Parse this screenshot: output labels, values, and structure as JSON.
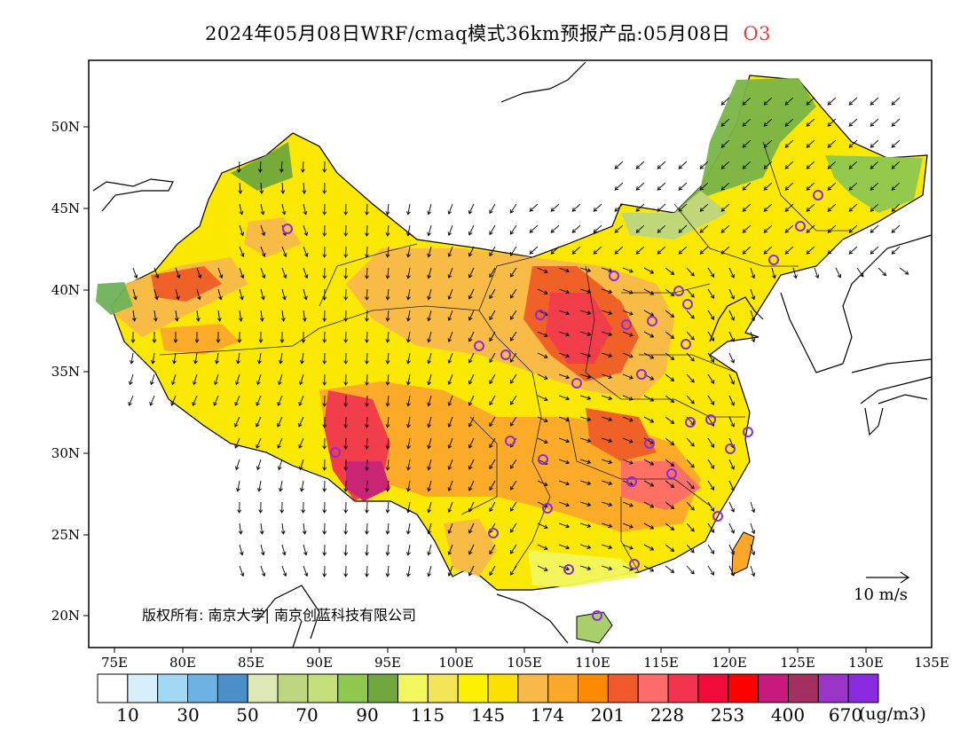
{
  "header": {
    "title_main": "2024年05月08日WRF/cmaq模式36km预报产品:05月08日",
    "species": "O3"
  },
  "map": {
    "lon_ticks": [
      "75E",
      "80E",
      "85E",
      "90E",
      "95E",
      "100E",
      "105E",
      "110E",
      "115E",
      "120E",
      "125E",
      "130E",
      "135E"
    ],
    "lat_ticks": [
      "20N",
      "25N",
      "30N",
      "35N",
      "40N",
      "45N",
      "50N"
    ],
    "copyright": "版权所有: 南京大学| 南京创蓝科技有限公司",
    "wind_reference": "10 m/s",
    "station_color": "#8a2be2"
  },
  "colorbar": {
    "colors": [
      "#ffffff",
      "#d7effc",
      "#a3d8f5",
      "#6cb2e2",
      "#4a8fc8",
      "#dfe9b8",
      "#bcd77f",
      "#c3e07a",
      "#8ec84f",
      "#70a83d",
      "#f2f75e",
      "#f4e457",
      "#fdf100",
      "#fbe000",
      "#f8b94a",
      "#fba82a",
      "#fd8a00",
      "#f05a2a",
      "#ff6a6a",
      "#f2344e",
      "#f10a3a",
      "#ff0000",
      "#c81a7c",
      "#a33060",
      "#9936c8",
      "#8a2be2"
    ],
    "labels": [
      "10",
      "30",
      "50",
      "70",
      "90",
      "115",
      "145",
      "174",
      "201",
      "228",
      "253",
      "400",
      "670"
    ],
    "units": "(ug/m3)"
  }
}
